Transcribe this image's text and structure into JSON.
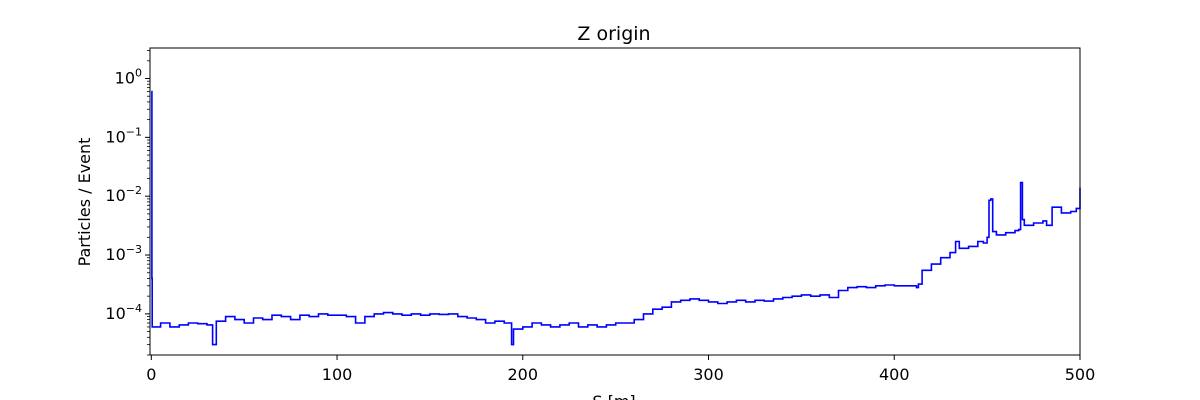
{
  "chart_data": {
    "type": "line",
    "title": "Z origin",
    "xlabel": "S [m]",
    "ylabel": "Particles / Event",
    "xlim": [
      -0.7,
      500
    ],
    "ylim": [
      2e-05,
      3.3
    ],
    "yscale": "log",
    "grid": false,
    "x_ticks": [
      0,
      100,
      200,
      300,
      400,
      500
    ],
    "y_ticks": [
      {
        "value": 0.0001,
        "base": "10",
        "exp": "−4"
      },
      {
        "value": 0.001,
        "base": "10",
        "exp": "−3"
      },
      {
        "value": 0.01,
        "base": "10",
        "exp": "−2"
      },
      {
        "value": 0.1,
        "base": "10",
        "exp": "−1"
      },
      {
        "value": 1,
        "base": "10",
        "exp": "0"
      }
    ],
    "series": [
      {
        "color": "#0000ff",
        "x": [
          0,
          0.3,
          0.5,
          1,
          5,
          10,
          15,
          20,
          25,
          30,
          33,
          35,
          40,
          45,
          50,
          55,
          60,
          65,
          70,
          75,
          80,
          85,
          90,
          95,
          100,
          105,
          110,
          115,
          120,
          125,
          130,
          135,
          140,
          145,
          150,
          155,
          160,
          165,
          170,
          175,
          180,
          185,
          190,
          194,
          195,
          200,
          205,
          210,
          215,
          220,
          225,
          230,
          235,
          240,
          245,
          250,
          255,
          260,
          265,
          270,
          275,
          280,
          285,
          290,
          295,
          300,
          305,
          310,
          315,
          320,
          325,
          330,
          335,
          340,
          345,
          350,
          355,
          360,
          365,
          370,
          375,
          380,
          385,
          390,
          395,
          400,
          405,
          410,
          412,
          413,
          415,
          420,
          425,
          430,
          432,
          433,
          435,
          440,
          445,
          448,
          450,
          451,
          452,
          453,
          455,
          460,
          465,
          467,
          468,
          469,
          470,
          475,
          480,
          482,
          485,
          490,
          495,
          498,
          500
        ],
        "y": [
          0.6,
          0.0004,
          6e-05,
          6e-05,
          7e-05,
          6e-05,
          6.5e-05,
          7e-05,
          6.8e-05,
          6.5e-05,
          3e-05,
          7.5e-05,
          9e-05,
          8e-05,
          7e-05,
          8.5e-05,
          8e-05,
          9.5e-05,
          9e-05,
          8e-05,
          9.5e-05,
          9e-05,
          0.0001,
          9.5e-05,
          9.5e-05,
          9e-05,
          7e-05,
          9e-05,
          0.0001,
          0.000105,
          0.0001,
          9.5e-05,
          0.0001,
          9.5e-05,
          0.0001,
          9.8e-05,
          0.0001,
          9e-05,
          8.5e-05,
          8e-05,
          7e-05,
          7.5e-05,
          7e-05,
          3e-05,
          5.5e-05,
          6e-05,
          7e-05,
          6.5e-05,
          6e-05,
          6.5e-05,
          7e-05,
          6e-05,
          6.5e-05,
          6e-05,
          6.5e-05,
          7e-05,
          7e-05,
          8e-05,
          0.0001,
          0.00012,
          0.00013,
          0.00016,
          0.00017,
          0.00018,
          0.00017,
          0.00016,
          0.00015,
          0.00016,
          0.00017,
          0.00016,
          0.00017,
          0.000165,
          0.00018,
          0.00019,
          0.0002,
          0.00021,
          0.0002,
          0.00021,
          0.00019,
          0.00025,
          0.00028,
          0.00029,
          0.00028,
          0.0003,
          0.00031,
          0.0003,
          0.0003,
          0.0003,
          0.00028,
          0.00032,
          0.00055,
          0.0007,
          0.0009,
          0.0011,
          0.0011,
          0.0017,
          0.0013,
          0.0014,
          0.0017,
          0.0016,
          0.002,
          0.0085,
          0.009,
          0.0025,
          0.0022,
          0.0024,
          0.0026,
          0.0027,
          0.017,
          0.004,
          0.0032,
          0.0035,
          0.0038,
          0.0032,
          0.0065,
          0.0052,
          0.0055,
          0.0062,
          0.014
        ]
      }
    ]
  }
}
